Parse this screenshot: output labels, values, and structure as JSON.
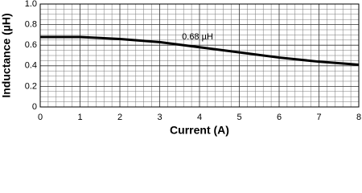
{
  "chart_data": {
    "type": "line",
    "xlabel": "Current (A)",
    "ylabel": "Inductance (µH)",
    "annotation": "0.68 µH",
    "x": [
      0,
      1,
      2,
      3,
      4,
      5,
      6,
      7,
      8
    ],
    "series": [
      {
        "color": "#000000",
        "values": [
          0.68,
          0.68,
          0.66,
          0.63,
          0.58,
          0.53,
          0.48,
          0.44,
          0.41
        ]
      }
    ],
    "xlim": [
      0,
      8
    ],
    "ylim": [
      0,
      1
    ],
    "xticks": [
      0,
      1,
      2,
      3,
      4,
      5,
      6,
      7,
      8
    ],
    "yticks": [
      0,
      0.2,
      0.4,
      0.6,
      0.8,
      {
        "value": 1,
        "label": "1.0"
      }
    ],
    "grid": true
  }
}
